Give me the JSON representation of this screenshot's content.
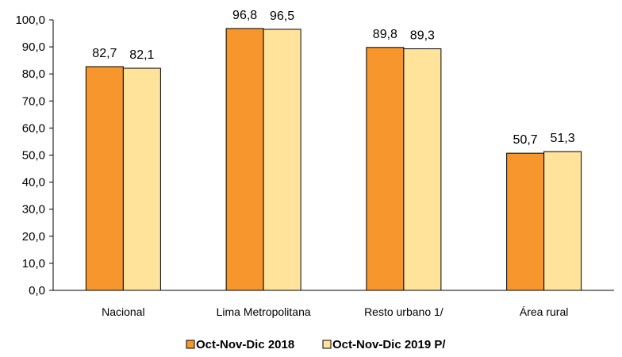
{
  "chart_data": {
    "type": "bar",
    "categories": [
      "Nacional",
      "Lima Metropolitana",
      "Resto urbano 1/",
      "Área rural"
    ],
    "series": [
      {
        "name": "Oct-Nov-Dic 2018",
        "values": [
          82.7,
          96.8,
          89.8,
          50.7
        ],
        "color": "#F7962C"
      },
      {
        "name": "Oct-Nov-Dic 2019 P/",
        "values": [
          82.1,
          96.5,
          89.3,
          51.3
        ],
        "color": "#FFE39B"
      }
    ],
    "value_labels": {
      "s0": [
        "82,7",
        "96,8",
        "89,8",
        "50,7"
      ],
      "s1": [
        "82,1",
        "96,5",
        "89,3",
        "51,3"
      ]
    },
    "y_ticks": [
      "0,0",
      "10,0",
      "20,0",
      "30,0",
      "40,0",
      "50,0",
      "60,0",
      "70,0",
      "80,0",
      "90,0",
      "100,0"
    ],
    "ylim": [
      0,
      100
    ],
    "grid": false,
    "legend_position": "bottom",
    "title": "",
    "xlabel": "",
    "ylabel": ""
  }
}
